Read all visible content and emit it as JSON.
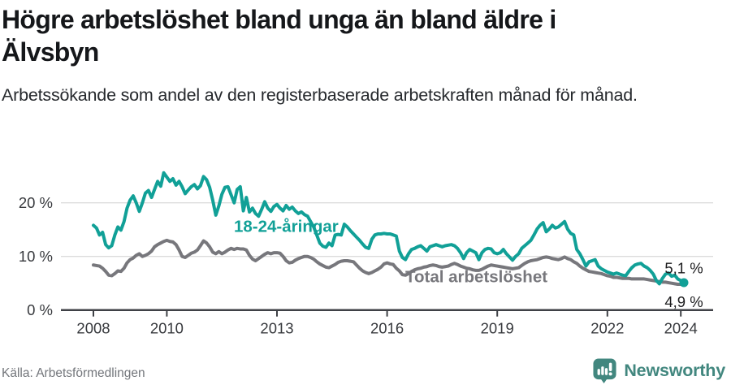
{
  "header": {
    "title": "Högre arbetslöshet bland unga än bland äldre i Älvsbyn",
    "subtitle": "Arbetssökande som andel av den registerbaserade arbetskraften månad för månad."
  },
  "footer": {
    "source": "Källa: Arbetsförmedlingen",
    "logo_text": "Newsworthy",
    "logo_icon": "newsworthy-speech-bubble-bar-chart-icon"
  },
  "colors": {
    "young_line": "#11a097",
    "total_line": "#77777c",
    "gridline": "#dcdcdc",
    "axis": "#3f4146",
    "tick_label": "#37393d",
    "end_label": "#1c1c1e",
    "logo": "#42877f",
    "source_text": "#73767b"
  },
  "chart_data": {
    "type": "line",
    "x_start": "2008-01",
    "x_frequency": "monthly",
    "x_end": "2024-02",
    "grid": "horizontal",
    "legend": "inline-labels",
    "ylim": [
      0,
      27
    ],
    "y_ticks": [
      {
        "value": 0,
        "label": "0 %"
      },
      {
        "value": 10,
        "label": "10 %"
      },
      {
        "value": 20,
        "label": "20 %"
      }
    ],
    "x_ticks": [
      {
        "year": 2008,
        "label": "2008"
      },
      {
        "year": 2010,
        "label": "2010"
      },
      {
        "year": 2013,
        "label": "2013"
      },
      {
        "year": 2016,
        "label": "2016"
      },
      {
        "year": 2019,
        "label": "2019"
      },
      {
        "year": 2022,
        "label": "2022"
      },
      {
        "year": 2024,
        "label": "2024"
      }
    ],
    "series": [
      {
        "id": "young",
        "name": "18-24-åringar",
        "color": "#11a097",
        "end_value": 5.1,
        "end_label": "5,1 %",
        "end_dot": true,
        "values": [
          15.8,
          15.3,
          14.0,
          14.5,
          12.2,
          11.6,
          12.0,
          14.0,
          15.5,
          14.9,
          16.5,
          19.0,
          20.5,
          21.3,
          20.0,
          18.4,
          20.0,
          21.8,
          22.3,
          21.0,
          22.5,
          24.0,
          23.1,
          25.6,
          24.8,
          24.0,
          24.5,
          23.3,
          24.0,
          23.0,
          21.7,
          22.4,
          23.0,
          23.4,
          22.6,
          23.2,
          24.9,
          24.3,
          22.9,
          20.5,
          17.7,
          19.4,
          21.6,
          22.9,
          23.0,
          21.5,
          20.0,
          22.5,
          23.0,
          18.5,
          21.0,
          18.3,
          19.0,
          18.0,
          17.5,
          18.8,
          20.2,
          19.0,
          18.4,
          19.3,
          19.7,
          19.0,
          18.5,
          19.5,
          18.8,
          19.2,
          18.5,
          18.0,
          18.3,
          17.8,
          17.5,
          16.5,
          15.5,
          14.0,
          12.5,
          11.9,
          11.7,
          12.5,
          12.0,
          14.0,
          14.1,
          14.0,
          16.0,
          15.5,
          14.8,
          14.2,
          13.6,
          13.0,
          12.3,
          11.7,
          11.5,
          13.2,
          14.0,
          14.2,
          14.2,
          14.3,
          14.2,
          14.2,
          14.0,
          13.8,
          11.0,
          9.8,
          9.4,
          10.5,
          11.3,
          11.5,
          11.8,
          12.0,
          11.5,
          11.0,
          11.8,
          12.0,
          12.2,
          12.0,
          11.8,
          12.0,
          12.1,
          12.2,
          12.0,
          11.5,
          10.7,
          9.6,
          10.7,
          11.3,
          11.0,
          10.7,
          9.4,
          10.7,
          11.3,
          11.5,
          11.4,
          10.7,
          10.5,
          10.7,
          11.3,
          10.5,
          9.9,
          9.3,
          10.0,
          10.5,
          11.5,
          12.0,
          12.5,
          13.0,
          14.0,
          15.1,
          15.8,
          16.3,
          14.6,
          15.1,
          15.8,
          15.3,
          15.5,
          16.0,
          16.5,
          15.1,
          14.3,
          14.0,
          11.3,
          10.5,
          9.4,
          8.2,
          9.0,
          9.2,
          9.4,
          8.2,
          7.7,
          7.4,
          7.1,
          6.9,
          6.7,
          6.9,
          6.7,
          6.5,
          6.4,
          7.2,
          7.9,
          8.4,
          8.6,
          8.7,
          8.2,
          7.9,
          7.4,
          6.7,
          5.5,
          4.9,
          5.9,
          6.7,
          6.9,
          6.3,
          6.5,
          5.8,
          5.5,
          5.1
        ]
      },
      {
        "id": "total",
        "name": "Total arbetslöshet",
        "color": "#77777c",
        "end_value": 4.9,
        "end_label": "4,9 %",
        "end_dot": false,
        "values": [
          8.4,
          8.3,
          8.2,
          7.8,
          7.2,
          6.5,
          6.4,
          6.8,
          7.3,
          7.2,
          7.8,
          8.8,
          9.4,
          9.7,
          10.2,
          10.5,
          10.0,
          10.2,
          10.5,
          11.0,
          11.8,
          12.2,
          12.5,
          12.8,
          13.0,
          12.8,
          12.7,
          12.2,
          11.2,
          10.0,
          9.8,
          10.2,
          10.6,
          10.8,
          11.2,
          12.0,
          12.9,
          12.5,
          11.8,
          10.8,
          10.5,
          10.9,
          10.5,
          10.8,
          11.2,
          11.5,
          11.3,
          11.5,
          11.4,
          11.4,
          11.2,
          10.2,
          9.5,
          9.2,
          9.6,
          10.0,
          10.4,
          10.7,
          10.5,
          10.7,
          10.7,
          10.6,
          10.0,
          9.2,
          8.8,
          8.9,
          9.3,
          9.6,
          9.8,
          10.0,
          10.0,
          9.8,
          9.5,
          9.0,
          8.6,
          8.3,
          8.0,
          7.9,
          8.2,
          8.5,
          8.9,
          9.1,
          9.2,
          9.2,
          9.1,
          9.0,
          8.4,
          7.8,
          7.3,
          7.0,
          6.8,
          7.0,
          7.3,
          7.6,
          8.0,
          8.6,
          8.8,
          8.6,
          8.5,
          7.8,
          7.3,
          6.6,
          6.5,
          6.8,
          7.2,
          7.5,
          7.7,
          7.8,
          8.0,
          8.1,
          8.3,
          8.4,
          8.3,
          8.1,
          8.0,
          8.1,
          8.2,
          8.5,
          8.7,
          8.5,
          8.2,
          8.0,
          7.8,
          7.7,
          7.5,
          7.4,
          7.4,
          7.6,
          7.9,
          8.2,
          8.4,
          8.3,
          8.2,
          8.1,
          8.0,
          7.9,
          7.8,
          7.7,
          7.8,
          7.9,
          8.3,
          8.7,
          9.0,
          9.2,
          9.3,
          9.4,
          9.6,
          9.8,
          9.9,
          9.8,
          9.6,
          9.5,
          9.4,
          9.6,
          9.9,
          9.6,
          9.4,
          9.0,
          8.7,
          8.2,
          7.8,
          7.5,
          7.2,
          7.1,
          7.0,
          6.9,
          6.8,
          6.6,
          6.4,
          6.3,
          6.1,
          6.1,
          6.0,
          5.9,
          5.9,
          5.9,
          5.8,
          5.8,
          5.8,
          5.8,
          5.8,
          5.7,
          5.6,
          5.5,
          5.4,
          5.3,
          5.2,
          5.2,
          5.1,
          5.0,
          4.9,
          4.8,
          4.8,
          4.9
        ]
      }
    ]
  }
}
